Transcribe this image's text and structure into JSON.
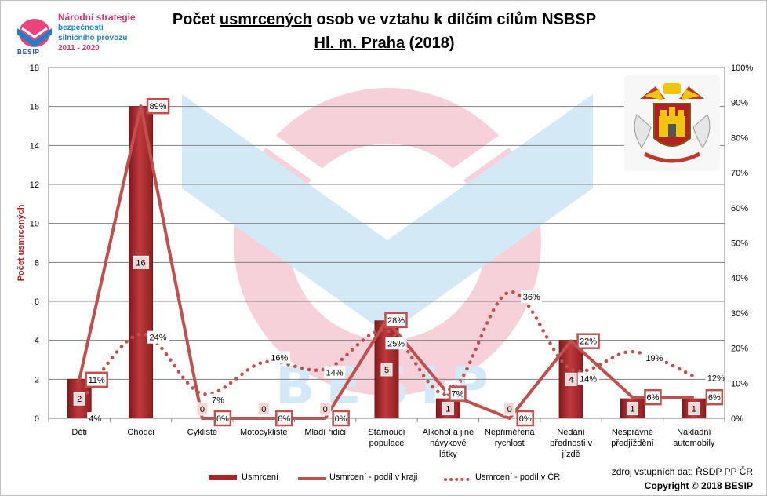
{
  "logo": {
    "line1": "Národní strategie",
    "line2": "bezpečnosti",
    "line3": "silničního provozu",
    "line4": "2011 - 2020",
    "brand": "BESIP"
  },
  "title": {
    "part1": "Počet ",
    "part2": "usmrcených",
    "part3": " osob ve vztahu k dílčím cílům NSBSP",
    "line2_place": "Hl. m. Praha",
    "line2_year": " (2018)"
  },
  "watermark": "BESIP",
  "legend": {
    "bars": "Usmrcení",
    "line_region": "Usmrcení - podíl v kraji",
    "line_cr": "Usmrcení - podíl v ČR"
  },
  "source": {
    "line1": "zdroj vstupních dat: ŘSDP PP ČR",
    "line2": "Copyright © 2018  BESIP"
  },
  "colors": {
    "bar": "#a6262a",
    "line_region": "#c0504d",
    "line_cr": "#c0504d",
    "grid": "#7f7f7f",
    "title_red": "#d6336c",
    "logo_blue": "#1f7fc4"
  },
  "chart_data": {
    "type": "bar",
    "ylabel": "Počet usmrcených",
    "ylim": [
      0,
      18
    ],
    "yticks": [
      "0",
      "2",
      "4",
      "6",
      "8",
      "10",
      "12",
      "14",
      "16",
      "18"
    ],
    "y2ticks": [
      "0%",
      "10%",
      "20%",
      "30%",
      "40%",
      "50%",
      "60%",
      "70%",
      "80%",
      "90%",
      "100%"
    ],
    "categories": [
      [
        "Děti"
      ],
      [
        "Chodci"
      ],
      [
        "Cyklisté"
      ],
      [
        "Motocyklisté"
      ],
      [
        "Mladí řidiči"
      ],
      [
        "Stárnoucí",
        "populace"
      ],
      [
        "Alkohol a jiné",
        "návykové",
        "látky"
      ],
      [
        "Nepřiměřená",
        "rychlost"
      ],
      [
        "Nedání",
        "přednosti v",
        "jízdě"
      ],
      [
        "Nesprávné",
        "předjíždění"
      ],
      [
        "Nákladní",
        "automobily"
      ]
    ],
    "series": [
      {
        "name": "Usmrcení",
        "type": "bar",
        "values": [
          2,
          16,
          0,
          0,
          0,
          5,
          1,
          0,
          4,
          1,
          1
        ],
        "labels": [
          "2",
          "16",
          "0",
          "0",
          "0",
          "5",
          "1",
          "0",
          "4",
          "1",
          "1"
        ]
      },
      {
        "name": "Usmrcení - podíl v kraji",
        "type": "line",
        "axis": "right",
        "values": [
          11,
          89,
          0,
          0,
          0,
          28,
          7,
          0,
          22,
          6,
          6
        ],
        "labels": [
          "11%",
          "89%",
          "0%",
          "0%",
          "0%",
          "28%",
          "7%",
          "0%",
          "22%",
          "6%",
          "6%"
        ]
      },
      {
        "name": "Usmrcení - podíl v ČR",
        "type": "line",
        "style": "dotted",
        "axis": "right",
        "values": [
          4,
          24,
          7,
          16,
          14,
          25,
          7,
          36,
          14,
          19,
          12
        ],
        "labels": [
          "4%",
          "24%",
          "7%",
          "16%",
          "14%",
          "25%",
          "7%",
          "36%",
          "14%",
          "19%",
          "12%"
        ]
      }
    ]
  }
}
